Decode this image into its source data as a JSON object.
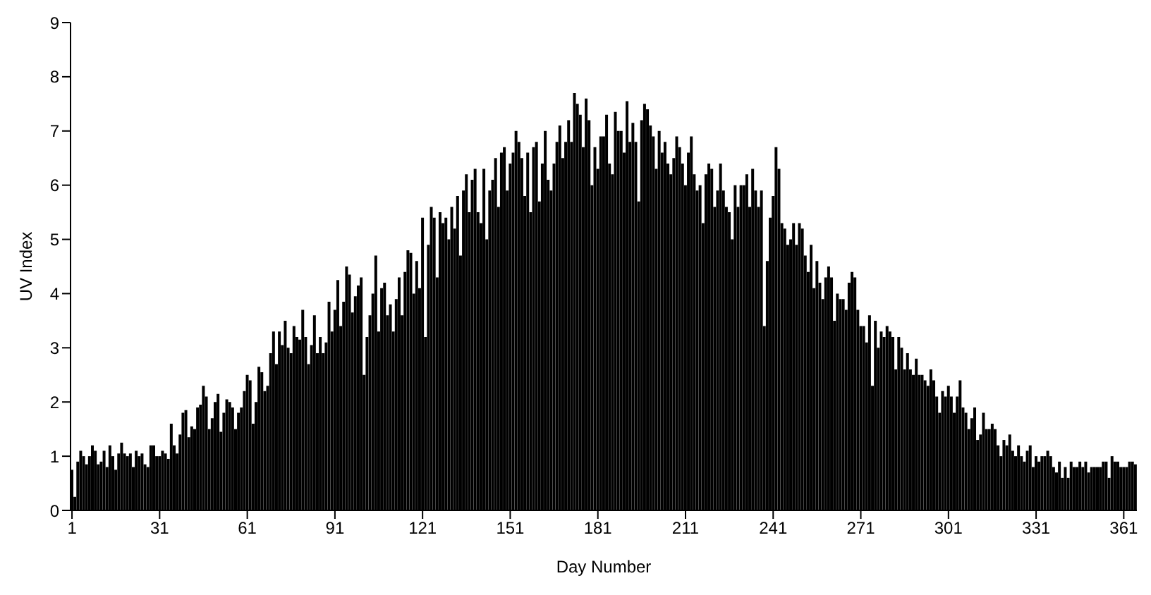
{
  "chart_data": {
    "type": "bar",
    "xlabel": "Day Number",
    "ylabel": "UV Index",
    "color": "#000000",
    "ylim": [
      0,
      9
    ],
    "yticks": [
      0,
      1,
      2,
      3,
      4,
      5,
      6,
      7,
      8,
      9
    ],
    "categories": [
      "1",
      null,
      null,
      null,
      null,
      null,
      null,
      null,
      null,
      null,
      null,
      null,
      null,
      null,
      null,
      null,
      null,
      null,
      null,
      null,
      null,
      null,
      null,
      null,
      null,
      null,
      null,
      null,
      null,
      null,
      "31",
      null,
      null,
      null,
      null,
      null,
      null,
      null,
      null,
      null,
      null,
      null,
      null,
      null,
      null,
      null,
      null,
      null,
      null,
      null,
      null,
      null,
      null,
      null,
      null,
      null,
      null,
      null,
      null,
      null,
      "61",
      null,
      null,
      null,
      null,
      null,
      null,
      null,
      null,
      null,
      null,
      null,
      null,
      null,
      null,
      null,
      null,
      null,
      null,
      null,
      null,
      null,
      null,
      null,
      null,
      null,
      null,
      null,
      null,
      null,
      "91",
      null,
      null,
      null,
      null,
      null,
      null,
      null,
      null,
      null,
      null,
      null,
      null,
      null,
      null,
      null,
      null,
      null,
      null,
      null,
      null,
      null,
      null,
      null,
      null,
      null,
      null,
      null,
      null,
      null,
      "121",
      null,
      null,
      null,
      null,
      null,
      null,
      null,
      null,
      null,
      null,
      null,
      null,
      null,
      null,
      null,
      null,
      null,
      null,
      null,
      null,
      null,
      null,
      null,
      null,
      null,
      null,
      null,
      null,
      null,
      "151",
      null,
      null,
      null,
      null,
      null,
      null,
      null,
      null,
      null,
      null,
      null,
      null,
      null,
      null,
      null,
      null,
      null,
      null,
      null,
      null,
      null,
      null,
      null,
      null,
      null,
      null,
      null,
      null,
      null,
      "181",
      null,
      null,
      null,
      null,
      null,
      null,
      null,
      null,
      null,
      null,
      null,
      null,
      null,
      null,
      null,
      null,
      null,
      null,
      null,
      null,
      null,
      null,
      null,
      null,
      null,
      null,
      null,
      null,
      null,
      "211",
      null,
      null,
      null,
      null,
      null,
      null,
      null,
      null,
      null,
      null,
      null,
      null,
      null,
      null,
      null,
      null,
      null,
      null,
      null,
      null,
      null,
      null,
      null,
      null,
      null,
      null,
      null,
      null,
      null,
      "241",
      null,
      null,
      null,
      null,
      null,
      null,
      null,
      null,
      null,
      null,
      null,
      null,
      null,
      null,
      null,
      null,
      null,
      null,
      null,
      null,
      null,
      null,
      null,
      null,
      null,
      null,
      null,
      null,
      null,
      "271",
      null,
      null,
      null,
      null,
      null,
      null,
      null,
      null,
      null,
      null,
      null,
      null,
      null,
      null,
      null,
      null,
      null,
      null,
      null,
      null,
      null,
      null,
      null,
      null,
      null,
      null,
      null,
      null,
      null,
      "301",
      null,
      null,
      null,
      null,
      null,
      null,
      null,
      null,
      null,
      null,
      null,
      null,
      null,
      null,
      null,
      null,
      null,
      null,
      null,
      null,
      null,
      null,
      null,
      null,
      null,
      null,
      null,
      null,
      null,
      "331",
      null,
      null,
      null,
      null,
      null,
      null,
      null,
      null,
      null,
      null,
      null,
      null,
      null,
      null,
      null,
      null,
      null,
      null,
      null,
      null,
      null,
      null,
      null,
      null,
      null,
      null,
      null,
      null,
      null,
      "361",
      null,
      null,
      null,
      null
    ],
    "values": [
      0.75,
      0.25,
      0.9,
      1.1,
      1.0,
      0.85,
      1.0,
      1.2,
      1.1,
      0.85,
      0.9,
      1.1,
      0.8,
      1.2,
      1.0,
      0.75,
      1.05,
      1.25,
      1.05,
      1.0,
      1.05,
      0.8,
      1.1,
      1.0,
      1.05,
      0.85,
      0.8,
      1.2,
      1.2,
      1.0,
      1.0,
      1.1,
      1.05,
      0.95,
      1.6,
      1.2,
      1.05,
      1.4,
      1.8,
      1.85,
      1.35,
      1.55,
      1.5,
      1.9,
      1.95,
      2.3,
      2.1,
      1.5,
      1.7,
      2.0,
      2.15,
      1.45,
      1.8,
      2.05,
      2.0,
      1.9,
      1.5,
      1.8,
      1.9,
      2.2,
      2.5,
      2.4,
      1.6,
      2.0,
      2.65,
      2.55,
      2.2,
      2.3,
      2.9,
      3.3,
      2.7,
      3.3,
      3.05,
      3.5,
      3.0,
      2.9,
      3.4,
      3.2,
      3.15,
      3.7,
      3.2,
      2.7,
      3.05,
      3.6,
      2.9,
      3.2,
      2.9,
      3.1,
      3.85,
      3.3,
      3.7,
      4.25,
      3.4,
      3.85,
      4.5,
      4.35,
      3.65,
      3.95,
      4.15,
      4.3,
      2.5,
      3.2,
      3.6,
      4.0,
      4.7,
      3.3,
      4.1,
      4.2,
      3.6,
      3.8,
      3.3,
      3.9,
      4.3,
      3.6,
      4.4,
      4.8,
      4.75,
      4.0,
      4.6,
      4.1,
      5.4,
      3.2,
      4.9,
      5.6,
      5.4,
      4.3,
      5.5,
      5.3,
      5.4,
      5.0,
      5.6,
      5.2,
      5.8,
      4.7,
      5.9,
      6.2,
      5.5,
      6.1,
      6.3,
      5.5,
      5.3,
      6.3,
      5.0,
      5.9,
      6.1,
      6.5,
      5.6,
      6.6,
      6.7,
      5.9,
      6.4,
      6.6,
      7.0,
      6.8,
      6.5,
      5.8,
      6.6,
      5.5,
      6.7,
      6.8,
      5.7,
      6.4,
      7.0,
      6.1,
      5.9,
      6.4,
      6.8,
      7.1,
      6.5,
      6.8,
      7.2,
      6.8,
      7.7,
      7.5,
      7.3,
      6.7,
      7.6,
      7.2,
      6.0,
      6.7,
      6.3,
      6.9,
      6.9,
      7.3,
      6.4,
      6.2,
      7.35,
      7.0,
      7.0,
      6.6,
      7.55,
      6.8,
      7.15,
      6.8,
      5.7,
      7.2,
      7.5,
      7.4,
      7.1,
      6.9,
      6.3,
      7.0,
      6.6,
      6.8,
      6.4,
      6.2,
      6.5,
      6.9,
      6.7,
      6.4,
      6.0,
      6.6,
      6.9,
      6.2,
      5.9,
      6.0,
      5.3,
      6.2,
      6.4,
      6.3,
      5.6,
      5.9,
      6.4,
      5.9,
      5.6,
      5.5,
      5.0,
      6.0,
      5.6,
      6.0,
      6.0,
      6.2,
      5.6,
      6.3,
      5.9,
      5.6,
      5.9,
      3.4,
      4.6,
      5.4,
      5.8,
      6.7,
      6.3,
      5.3,
      5.2,
      4.9,
      5.0,
      5.3,
      4.9,
      5.3,
      5.2,
      4.7,
      4.4,
      4.9,
      4.1,
      4.6,
      4.2,
      3.9,
      4.3,
      4.5,
      4.3,
      3.5,
      4.0,
      3.9,
      3.9,
      3.7,
      4.2,
      4.4,
      4.3,
      3.7,
      3.4,
      3.4,
      3.1,
      3.6,
      2.3,
      3.5,
      3.0,
      3.3,
      3.2,
      3.4,
      3.3,
      3.2,
      2.6,
      3.2,
      3.0,
      2.6,
      2.9,
      2.6,
      2.5,
      2.8,
      2.5,
      2.5,
      2.4,
      2.3,
      2.6,
      2.4,
      2.1,
      1.8,
      2.2,
      2.1,
      2.3,
      2.1,
      1.8,
      2.1,
      2.4,
      1.9,
      1.8,
      1.5,
      1.7,
      1.9,
      1.3,
      1.4,
      1.8,
      1.5,
      1.5,
      1.6,
      1.5,
      1.2,
      1.0,
      1.3,
      1.2,
      1.4,
      1.1,
      1.0,
      1.2,
      1.0,
      0.9,
      1.1,
      1.2,
      0.8,
      1.0,
      0.9,
      1.0,
      1.0,
      1.1,
      1.0,
      0.8,
      0.7,
      0.9,
      0.6,
      0.8,
      0.6,
      0.9,
      0.8,
      0.8,
      0.9,
      0.8,
      0.9,
      0.7,
      0.8,
      0.8,
      0.8,
      0.8,
      0.9,
      0.9,
      0.6,
      1.0,
      0.9,
      0.9,
      0.8,
      0.8,
      0.8,
      0.9,
      0.9,
      0.85
    ]
  }
}
